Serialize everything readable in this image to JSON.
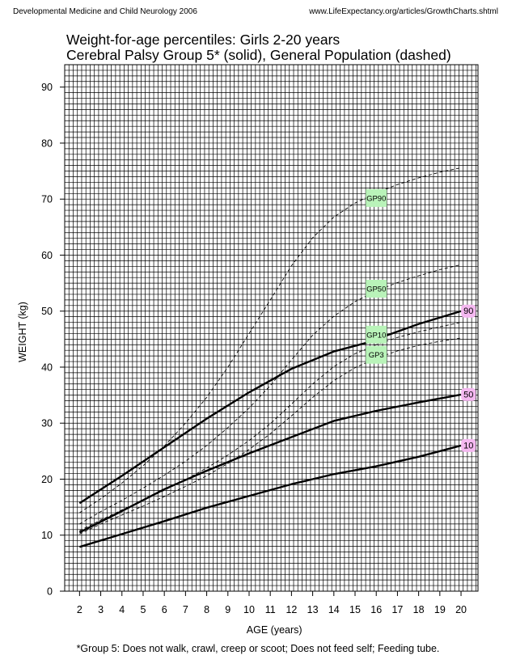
{
  "header": {
    "left": "Developmental Medicine and Child Neurology 2006",
    "right": "www.LifeExpectancy.org/articles/GrowthCharts.shtml"
  },
  "chart_data": {
    "type": "line",
    "title": "Weight-for-age percentiles: Girls 2-20 years",
    "subtitle": "Cerebral Palsy Group 5* (solid), General Population (dashed)",
    "xlabel": "AGE (years)",
    "ylabel": "WEIGHT (kg)",
    "xlim": [
      1.3,
      20.8
    ],
    "ylim": [
      0,
      94
    ],
    "xticks": [
      2,
      3,
      4,
      5,
      6,
      7,
      8,
      9,
      10,
      11,
      12,
      13,
      14,
      15,
      16,
      17,
      18,
      19,
      20
    ],
    "yticks": [
      0,
      10,
      20,
      30,
      40,
      50,
      60,
      70,
      80,
      90
    ],
    "grid": true,
    "grid_step_x": 0.2,
    "grid_step_y": 1,
    "series": [
      {
        "name": "90",
        "style": "solid",
        "label_color": "#f4b8f0",
        "x": [
          2,
          4,
          6,
          8,
          10,
          12,
          14,
          15.5,
          16,
          18,
          20
        ],
        "y": [
          15.7,
          20.6,
          25.7,
          30.8,
          35.5,
          39.7,
          42.8,
          44.3,
          45.0,
          47.7,
          50.0
        ]
      },
      {
        "name": "50",
        "style": "solid",
        "label_color": "#f4b8f0",
        "x": [
          2,
          4,
          6,
          8,
          10,
          12,
          14,
          16,
          18,
          20
        ],
        "y": [
          10.5,
          14.3,
          18.2,
          21.5,
          24.6,
          27.5,
          30.4,
          32.2,
          33.7,
          35.1
        ]
      },
      {
        "name": "10",
        "style": "solid",
        "label_color": "#f4b8f0",
        "x": [
          2,
          4,
          6,
          8,
          10,
          12,
          14,
          16,
          18,
          20
        ],
        "y": [
          7.9,
          10.2,
          12.5,
          14.9,
          17.0,
          19.1,
          20.9,
          22.3,
          24.0,
          26.0
        ]
      },
      {
        "name": "GP90",
        "style": "dashed",
        "label_color": "#b9f3b9",
        "x": [
          2,
          3,
          4,
          5,
          6,
          7,
          8,
          9,
          10,
          11,
          12,
          13,
          14,
          15,
          16,
          17,
          18,
          19,
          20
        ],
        "y": [
          14.0,
          16.5,
          19.3,
          22.4,
          25.9,
          30.0,
          34.6,
          40.0,
          46.0,
          52.0,
          58.1,
          63.1,
          66.8,
          69.3,
          71.1,
          72.6,
          73.8,
          74.8,
          75.6
        ]
      },
      {
        "name": "GP50",
        "style": "dashed",
        "label_color": "#b9f3b9",
        "x": [
          2,
          3,
          4,
          5,
          6,
          7,
          8,
          9,
          10,
          11,
          12,
          13,
          14,
          15,
          16,
          17,
          18,
          19,
          20
        ],
        "y": [
          12.0,
          14.2,
          16.2,
          18.4,
          20.7,
          23.2,
          26.0,
          29.2,
          32.7,
          36.7,
          41.3,
          45.7,
          49.1,
          51.7,
          53.6,
          55.1,
          56.3,
          57.4,
          58.3
        ]
      },
      {
        "name": "GP10",
        "style": "dashed",
        "label_color": "#b9f3b9",
        "x": [
          2,
          3,
          4,
          5,
          6,
          7,
          8,
          9,
          10,
          11,
          12,
          13,
          14,
          15,
          16,
          17,
          18,
          19,
          20
        ],
        "y": [
          10.8,
          12.7,
          14.5,
          16.2,
          18.0,
          19.9,
          22.0,
          24.3,
          26.9,
          29.9,
          33.4,
          37.0,
          40.1,
          42.4,
          44.0,
          45.3,
          46.3,
          47.2,
          48.0
        ]
      },
      {
        "name": "GP3",
        "style": "dashed",
        "label_color": "#b9f3b9",
        "x": [
          2,
          3,
          4,
          5,
          6,
          7,
          8,
          9,
          10,
          11,
          12,
          13,
          14,
          15,
          16,
          17,
          18,
          19,
          20
        ],
        "y": [
          10.2,
          12.0,
          13.6,
          15.2,
          16.9,
          18.7,
          20.6,
          22.8,
          25.3,
          28.1,
          31.3,
          34.6,
          37.6,
          39.9,
          41.6,
          42.9,
          43.9,
          44.6,
          45.2
        ]
      }
    ],
    "labels": [
      {
        "text": "90",
        "x": 20.35,
        "y": 50.0,
        "bg": "#f4b8f0"
      },
      {
        "text": "50",
        "x": 20.35,
        "y": 35.1,
        "bg": "#f4b8f0"
      },
      {
        "text": "10",
        "x": 20.35,
        "y": 26.0,
        "bg": "#f4b8f0"
      },
      {
        "text": "GP90",
        "x": 16.0,
        "y": 70.2,
        "bg": "#b9f3b9"
      },
      {
        "text": "GP50",
        "x": 16.0,
        "y": 54.0,
        "bg": "#b9f3b9"
      },
      {
        "text": "GP10",
        "x": 16.0,
        "y": 45.8,
        "bg": "#b9f3b9"
      },
      {
        "text": "GP3",
        "x": 16.0,
        "y": 42.2,
        "bg": "#b9f3b9"
      }
    ]
  },
  "footnote": "*Group 5: Does not walk, crawl, creep or scoot; Does not feed self; Feeding tube."
}
